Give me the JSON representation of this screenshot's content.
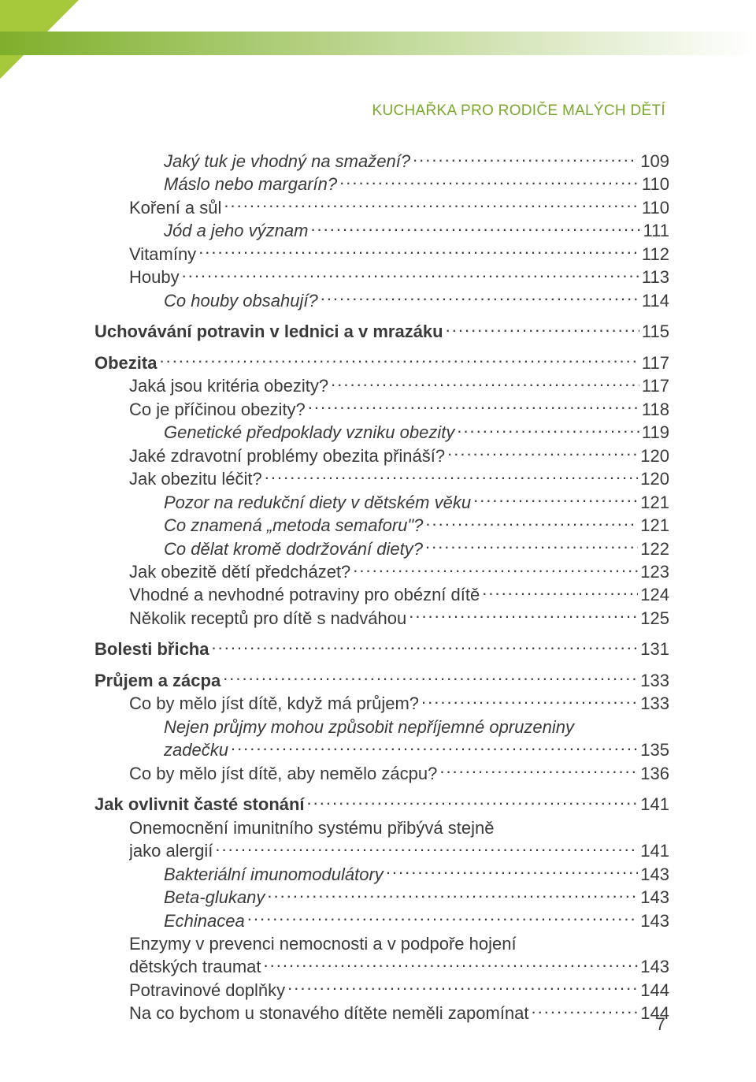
{
  "colors": {
    "corner": "#a5c93a",
    "gradient_left": "#7eb02a",
    "gradient_right": "#ffffff",
    "running_head": "#7aa82e",
    "text": "#3a3a3a",
    "dots": "#3a3a3a"
  },
  "running_head": "KUCHAŘKA PRO RODIČE MALÝCH DĚTÍ",
  "page_number": "7",
  "toc": [
    {
      "label": "Jaký tuk je vhodný na smažení?",
      "page": "109",
      "level": 2,
      "italic": true,
      "bold": false,
      "gap": false
    },
    {
      "label": "Máslo nebo margarín?",
      "page": "110",
      "level": 2,
      "italic": true,
      "bold": false,
      "gap": false
    },
    {
      "label": "Koření a sůl",
      "page": "110",
      "level": 1,
      "italic": false,
      "bold": false,
      "gap": false
    },
    {
      "label": "Jód a jeho význam",
      "page": "111",
      "level": 2,
      "italic": true,
      "bold": false,
      "gap": false
    },
    {
      "label": "Vitamíny",
      "page": "112",
      "level": 1,
      "italic": false,
      "bold": false,
      "gap": false
    },
    {
      "label": "Houby",
      "page": "113",
      "level": 1,
      "italic": false,
      "bold": false,
      "gap": false
    },
    {
      "label": "Co houby obsahují?",
      "page": "114",
      "level": 2,
      "italic": true,
      "bold": false,
      "gap": false
    },
    {
      "label": "Uchovávání potravin v lednici a v mrazáku",
      "page": "115",
      "level": 0,
      "italic": false,
      "bold": true,
      "gap": true
    },
    {
      "label": "Obezita",
      "page": "117",
      "level": 0,
      "italic": false,
      "bold": true,
      "gap": true
    },
    {
      "label": "Jaká jsou kritéria obezity?",
      "page": "117",
      "level": 1,
      "italic": false,
      "bold": false,
      "gap": false
    },
    {
      "label": "Co je příčinou obezity?",
      "page": "118",
      "level": 1,
      "italic": false,
      "bold": false,
      "gap": false
    },
    {
      "label": "Genetické předpoklady vzniku obezity",
      "page": "119",
      "level": 2,
      "italic": true,
      "bold": false,
      "gap": false
    },
    {
      "label": "Jaké zdravotní problémy obezita přináší?",
      "page": "120",
      "level": 1,
      "italic": false,
      "bold": false,
      "gap": false
    },
    {
      "label": "Jak obezitu léčit?",
      "page": "120",
      "level": 1,
      "italic": false,
      "bold": false,
      "gap": false
    },
    {
      "label": "Pozor na redukční diety v dětském věku",
      "page": "121",
      "level": 2,
      "italic": true,
      "bold": false,
      "gap": false
    },
    {
      "label": "Co znamená „metoda semaforu\"?",
      "page": "121",
      "level": 2,
      "italic": true,
      "bold": false,
      "gap": false
    },
    {
      "label": "Co dělat kromě dodržování diety?",
      "page": "122",
      "level": 2,
      "italic": true,
      "bold": false,
      "gap": false
    },
    {
      "label": "Jak obezitě dětí předcházet?",
      "page": "123",
      "level": 1,
      "italic": false,
      "bold": false,
      "gap": false
    },
    {
      "label": "Vhodné a nevhodné potraviny pro obézní dítě",
      "page": "124",
      "level": 1,
      "italic": false,
      "bold": false,
      "gap": false
    },
    {
      "label": "Několik receptů pro dítě s nadváhou",
      "page": "125",
      "level": 1,
      "italic": false,
      "bold": false,
      "gap": false
    },
    {
      "label": "Bolesti břicha",
      "page": "131",
      "level": 0,
      "italic": false,
      "bold": true,
      "gap": true
    },
    {
      "label": "Průjem a zácpa",
      "page": "133",
      "level": 0,
      "italic": false,
      "bold": true,
      "gap": true
    },
    {
      "label": "Co by mělo jíst dítě, když má průjem?",
      "page": "133",
      "level": 1,
      "italic": false,
      "bold": false,
      "gap": false
    },
    {
      "label_lines": [
        "Nejen průjmy mohou způsobit nepříjemné opruzeniny",
        "zadečku"
      ],
      "page": "135",
      "level": 2,
      "italic": true,
      "bold": false,
      "gap": false
    },
    {
      "label": "Co by mělo jíst dítě, aby nemělo zácpu?",
      "page": "136",
      "level": 1,
      "italic": false,
      "bold": false,
      "gap": false
    },
    {
      "label": "Jak ovlivnit časté stonání",
      "page": "141",
      "level": 0,
      "italic": false,
      "bold": true,
      "gap": true
    },
    {
      "label_lines": [
        "Onemocnění imunitního systému přibývá stejně",
        "jako alergií"
      ],
      "page": "141",
      "level": 1,
      "italic": false,
      "bold": false,
      "gap": false
    },
    {
      "label": "Bakteriální imunomodulátory",
      "page": "143",
      "level": 2,
      "italic": true,
      "bold": false,
      "gap": false
    },
    {
      "label": "Beta-glukany",
      "page": "143",
      "level": 2,
      "italic": true,
      "bold": false,
      "gap": false
    },
    {
      "label": "Echinacea",
      "page": "143",
      "level": 2,
      "italic": true,
      "bold": false,
      "gap": false
    },
    {
      "label_lines": [
        "Enzymy v prevenci nemocnosti a v podpoře hojení",
        "dětských traumat"
      ],
      "page": "143",
      "level": 1,
      "italic": false,
      "bold": false,
      "gap": false
    },
    {
      "label": "Potravinové doplňky",
      "page": "144",
      "level": 1,
      "italic": false,
      "bold": false,
      "gap": false
    },
    {
      "label": "Na co bychom u stonavého dítěte neměli zapomínat",
      "page": "144",
      "level": 1,
      "italic": false,
      "bold": false,
      "gap": false
    }
  ]
}
